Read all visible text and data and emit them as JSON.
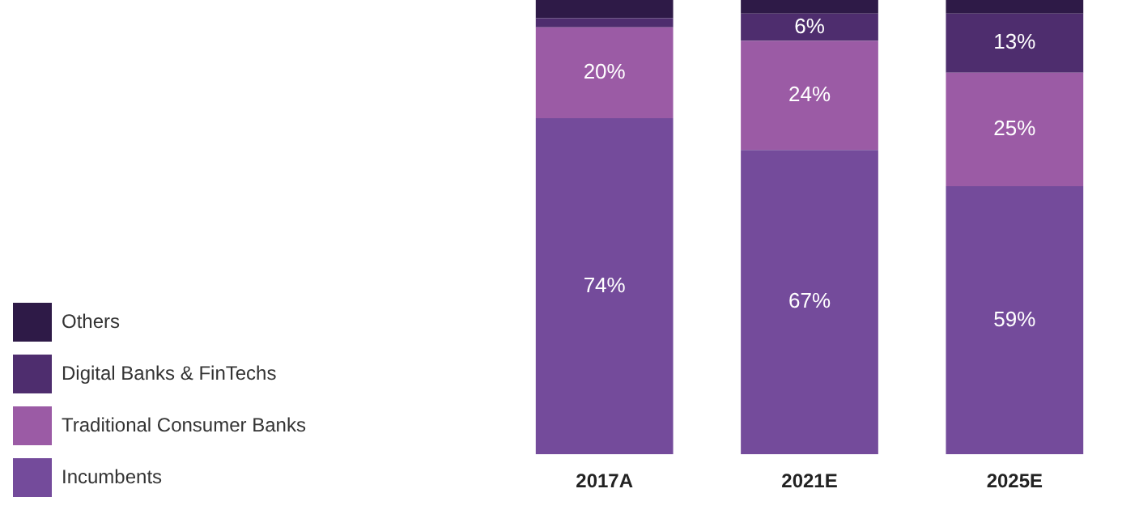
{
  "chart_data": {
    "type": "bar",
    "stacked": true,
    "categories": [
      "2017A",
      "2021E",
      "2025E"
    ],
    "series": [
      {
        "name": "Incumbents",
        "color": "#744b9b",
        "values": [
          74,
          67,
          59
        ],
        "value_labels": [
          "74%",
          "67%",
          "59%"
        ]
      },
      {
        "name": "Traditional Consumer Banks",
        "color": "#9b5ba5",
        "values": [
          20,
          24,
          25
        ],
        "value_labels": [
          "20%",
          "24%",
          "25%"
        ]
      },
      {
        "name": "Digital Banks & FinTechs",
        "color": "#4e2d6e",
        "values": [
          2,
          6,
          13
        ],
        "value_labels": [
          null,
          "6%",
          "13%"
        ]
      },
      {
        "name": "Others",
        "color": "#2e1a47",
        "values": [
          4,
          3,
          3
        ],
        "value_labels": [
          null,
          null,
          null
        ]
      }
    ],
    "legend": "left",
    "grid": false,
    "tick_labels": "x"
  }
}
